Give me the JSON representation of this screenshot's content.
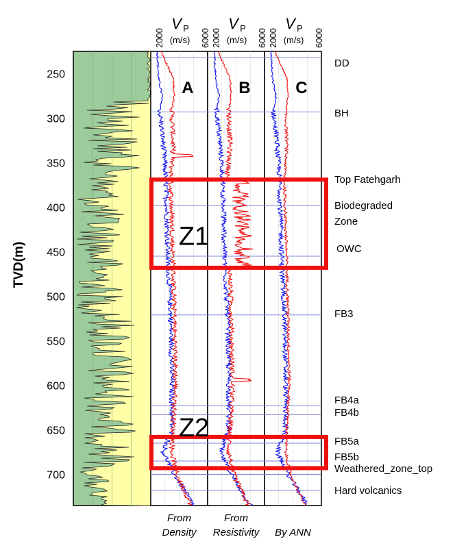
{
  "chart_data": {
    "type": "line",
    "y_axis": {
      "label": "TVD(m)",
      "range": [
        225,
        735
      ],
      "ticks": [
        250,
        300,
        350,
        400,
        450,
        500,
        550,
        600,
        650,
        700
      ],
      "inverted": true
    },
    "x_axis": {
      "label_symbol": "V",
      "label_subscript": "P",
      "unit": "(m/s)",
      "range": [
        2000,
        6000
      ],
      "tick_labels": [
        "2000",
        "6000"
      ]
    },
    "tracks": [
      {
        "letter": "A",
        "caption_line1": "From",
        "caption_line2": "Density"
      },
      {
        "letter": "B",
        "caption_line1": "From",
        "caption_line2": "Resistivity"
      },
      {
        "letter": "C",
        "caption_line1": "By ANN",
        "caption_line2": ""
      }
    ],
    "series_colors": {
      "measured": "#1111ee",
      "predicted": "#ee1111"
    },
    "lithology_colors": {
      "background": "#9ccc9c",
      "fill": "#ffffa8"
    },
    "horizons": [
      {
        "name": "DD",
        "depth": 232
      },
      {
        "name": "BH",
        "depth": 293
      },
      {
        "name": "Top Fatehgarh",
        "depth": 375
      },
      {
        "name": "Biodegraded",
        "depth": 398
      },
      {
        "name": "Zone",
        "depth": 416
      },
      {
        "name": "OWC",
        "depth": 455
      },
      {
        "name": "FB3",
        "depth": 521
      },
      {
        "name": "FB4a",
        "depth": 623
      },
      {
        "name": "FB4b",
        "depth": 633
      },
      {
        "name": "FB5a",
        "depth": 665
      },
      {
        "name": "FB5b",
        "depth": 685
      },
      {
        "name": "Weathered_zone_top",
        "depth": 700
      },
      {
        "name": "Hard volcanics",
        "depth": 718
      }
    ],
    "zones": [
      {
        "label": "Z1",
        "top": 369,
        "bottom": 468,
        "label_depth": 430
      },
      {
        "label": "Z2",
        "top": 658,
        "bottom": 693,
        "label_depth": 645
      }
    ],
    "velocity_profile": [
      {
        "depth": 225,
        "measured": 2200,
        "predicted": 2500
      },
      {
        "depth": 255,
        "measured": 2300,
        "predicted": 3500
      },
      {
        "depth": 275,
        "measured": 2600,
        "predicted": 3600
      },
      {
        "depth": 293,
        "measured": 2400,
        "predicted": 3400
      },
      {
        "depth": 330,
        "measured": 2700,
        "predicted": 3500
      },
      {
        "depth": 369,
        "measured": 2900,
        "predicted": 3300
      },
      {
        "depth": 420,
        "measured": 3000,
        "predicted": 3400
      },
      {
        "depth": 468,
        "measured": 3100,
        "predicted": 3500
      },
      {
        "depth": 520,
        "measured": 3300,
        "predicted": 3600
      },
      {
        "depth": 600,
        "measured": 3400,
        "predicted": 3700
      },
      {
        "depth": 650,
        "measured": 3400,
        "predicted": 3500
      },
      {
        "depth": 675,
        "measured": 2700,
        "predicted": 3400
      },
      {
        "depth": 700,
        "measured": 3600,
        "predicted": 3800
      },
      {
        "depth": 735,
        "measured": 5200,
        "predicted": 5000
      }
    ]
  }
}
